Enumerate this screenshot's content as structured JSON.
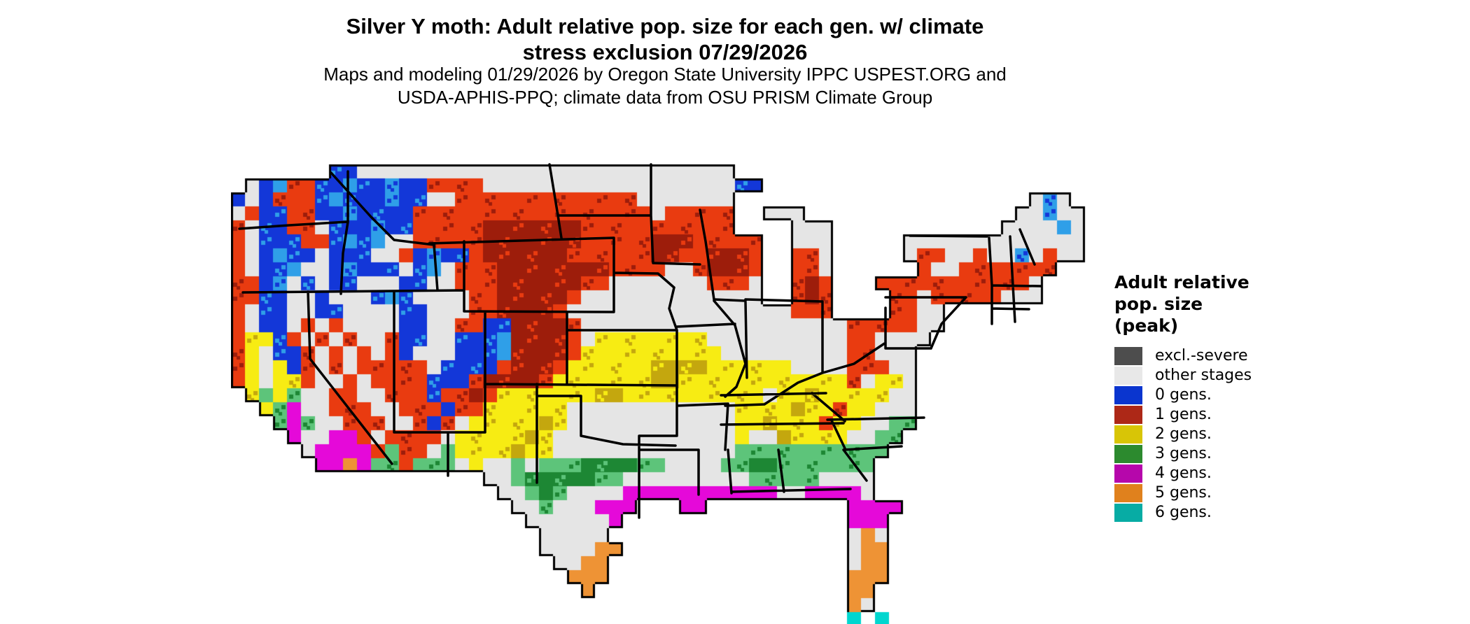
{
  "title": {
    "line1": "Silver Y moth: Adult relative pop. size for each gen. w/ climate",
    "line2": "stress exclusion 07/29/2026"
  },
  "subtitle": {
    "line1": "Maps and modeling 01/29/2026 by Oregon State University IPPC USPEST.ORG and",
    "line2": "USDA-APHIS-PPQ; climate data from OSU PRISM Climate Group"
  },
  "legend": {
    "title_lines": [
      "Adult relative",
      "pop. size",
      "(peak)"
    ],
    "items": [
      {
        "label": "excl.-severe",
        "color": "#4d4d4d"
      },
      {
        "label": "other stages",
        "color": "#e8e8e8"
      },
      {
        "label": "0 gens.",
        "color": "#0a35cf"
      },
      {
        "label": "1 gens.",
        "color": "#ad2817"
      },
      {
        "label": "2 gens.",
        "color": "#d8c506"
      },
      {
        "label": "3 gens.",
        "color": "#2c8a2e"
      },
      {
        "label": "4 gens.",
        "color": "#b607ab"
      },
      {
        "label": "5 gens.",
        "color": "#e0811d"
      },
      {
        "label": "6 gens.",
        "color": "#07aca4"
      }
    ]
  },
  "map": {
    "cols": 62,
    "rows": 35,
    "cell": 20,
    "ocean": "#ffffff",
    "border": "#000000",
    "palette": {
      ".": "#ffffff",
      "G": "#e5e5e5",
      "b": "#1337d8",
      "l": "#2f9fe8",
      "r": "#e93b10",
      "R": "#9d1d0b",
      "y": "#f7ec13",
      "Y": "#c4a70e",
      "n": "#5dc47a",
      "N": "#1d8734",
      "m": "#e509d9",
      "o": "#ee9335",
      "c": "#00d6cf",
      "k": "#4d4d4d"
    },
    "palette_meaning": {
      "G": "other stages",
      "b": "0 gens.",
      "l": "0 gens. (light)",
      "r": "1 gens.",
      "R": "1 gens. (dark)",
      "y": "2 gens.",
      "Y": "2 gens. (dark)",
      "n": "3 gens.",
      "N": "3 gens. (dark)",
      "m": "4 gens.",
      "o": "5 gens.",
      "c": "6 gens.",
      "k": "excl.-severe"
    },
    "raster": [
      "..............................................................",
      "..............................................................",
      ".......bbGGGGGGGGGGGGGGGGGGGGGGGGGGG..........................",
      ".GblrrbblbblbbrrrrGGGGGGGGGGGGGGGGGGbb........................",
      "bGbrrrblbbblbbGGrrrrrrrrrrrrrGGGGGGG.....................GlG..",
      "GrbbrrbblbbbbrrrrrrrrrrrrrrrrrGrrrrr..GGG...............GGlGG.",
      "rGbbrrGbbblbbrrrrrRRRRRRRrrrrrrrrrrr....GGG............GGGGlG.",
      "rGbbbrrblblGGrrrrrRRRRRRRrrrrrRRRrrrrr..GGG.....GGGGGGGGGGGGG.",
      "rGblbbGbbbGGrblbbrRRRRRRrrrrrrRRrrRRRr..rrG.....GrrGGrGGlGrGG.",
      "rGbblGGblbbbGblGrrrRRRRRRRRrrrrGGrRRRr..rrG......rGGrrrrrrr...",
      "rrblGbGbbGGGbbGGrrrRRRRRRrrGGGGGGGrrrG..rRr...rrrrrrrrrrrG....",
      "rrbbGGbGGGblbGGGGrrRRRRRrGGGGGGGGGGGGG..rRr....rrGrrrrrGGG....",
      "rGbbGGbbGGGGbbGGGrrRRRRrGGGGGGGGGGGGGGGGrrr....rrGG...........",
      "rGbbGrGrGGGGbbGGrrbbRRRRrGGGGGGGGGGGGGGGGGGGrrrrrGG...........",
      "ryybrGrGrGGrbbGGbbblRRRRrGyyyyyyyyGGGGGGGGGGrrGGGG............",
      "ryGbbrGrGrGrbGGGbbblRRRRryyyyyyyyyyGGGGGGGGGrrGGG.............",
      "ryGybrGrGrrrrrGbbbbrRRRryyyyyyYYYYyyyyyyGGGGrrrGG.............",
      "ryGyyrGGrGrrrrbbbrRRRRryyyyyyyYYyyyyyyyyyyyyrGyyG.............",
      ".ynynGGrrGGrrrbrrRryyyyyyyYYyyyyyyyyyyGyyYyyyyyGG.............",
      "..ynmGGrrrGGrrrbrryyyyyyGGGGGGGGGGGGyyyyYyyryyGGG.............",
      "...nmnGGrrrGGrbrGyyyyyYyGGGGGGGGGGGGyyYyyyryyGGnn.............",
      "....mGGmmrGrrrrGyyyyyYyGGGGGGGGGGGGGyGGYyyyyGGnn..............",
      ".....GmmmmrnrrGnyyyyYyyGGGGGGGGGGGGGnnnnnnnnnnn...............",
      "......mmomnnrnnnGyGGnGnnnNNNNnnGGGGnnNNnnnnnnn................",
      "..................GGnNNNNNnnGGGGGGGGGnnnnnGGGG................",
      "...................GGnNnGGGGmmmmmmmmmmmGGmmmmG................",
      "....................GGnGGGmmm...mm..........mmmm..............",
      ".....................GGGGGGm................mmm...............",
      "......................GGGGG.................GoG...............",
      "......................GGGGoo................Goo...............",
      ".......................GGoo.................Goo...............",
      "........................ooo.................ooo...............",
      ".........................o..................oo................",
      "............................................oG................",
      "............................................c.c..............."
    ]
  }
}
